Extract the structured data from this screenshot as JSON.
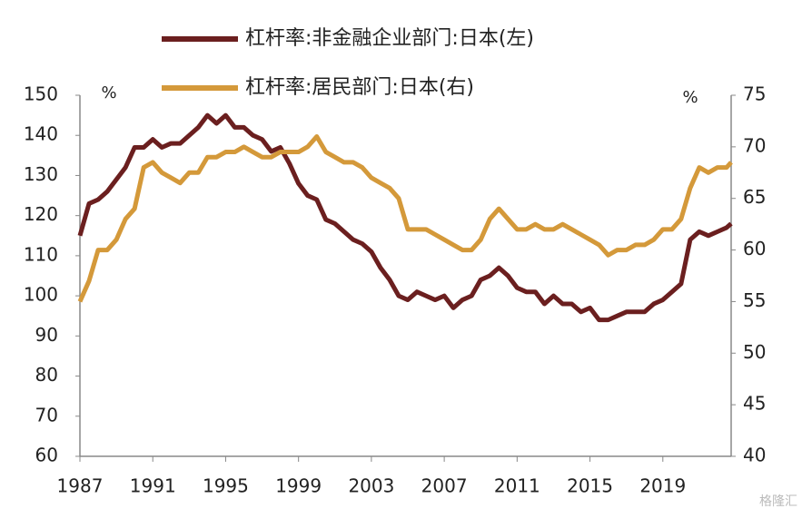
{
  "chart_data": {
    "type": "line",
    "x": [
      1987,
      1987.5,
      1988,
      1988.5,
      1989,
      1989.5,
      1990,
      1990.5,
      1991,
      1991.5,
      1992,
      1992.5,
      1993,
      1993.5,
      1994,
      1994.5,
      1995,
      1995.5,
      1996,
      1996.5,
      1997,
      1997.5,
      1998,
      1998.5,
      1999,
      1999.5,
      2000,
      2000.5,
      2001,
      2001.5,
      2002,
      2002.5,
      2003,
      2003.5,
      2004,
      2004.5,
      2005,
      2005.5,
      2006,
      2006.5,
      2007,
      2007.5,
      2008,
      2008.5,
      2009,
      2009.5,
      2010,
      2010.5,
      2011,
      2011.5,
      2012,
      2012.5,
      2013,
      2013.5,
      2014,
      2014.5,
      2015,
      2015.5,
      2016,
      2016.5,
      2017,
      2017.5,
      2018,
      2018.5,
      2019,
      2019.5,
      2020,
      2020.5,
      2021,
      2021.5,
      2022,
      2022.5,
      2022.75
    ],
    "series": [
      {
        "name": "杠杆率:非金融企业部门:日本(左)",
        "color": "#6b1f1f",
        "axis": "y",
        "values": [
          115,
          123,
          124,
          126,
          129,
          132,
          137,
          137,
          139,
          137,
          138,
          138,
          140,
          142,
          145,
          143,
          145,
          142,
          142,
          140,
          139,
          136,
          137,
          133,
          128,
          125,
          124,
          119,
          118,
          116,
          114,
          113,
          111,
          107,
          104,
          100,
          99,
          101,
          100,
          99,
          100,
          97,
          99,
          100,
          104,
          105,
          107,
          105,
          102,
          101,
          101,
          98,
          100,
          98,
          98,
          96,
          97,
          94,
          94,
          95,
          96,
          96,
          96,
          98,
          99,
          101,
          103,
          114,
          116,
          115,
          116,
          117,
          118
        ]
      },
      {
        "name": "杠杆率:居民部门:日本(右)",
        "color": "#d4993a",
        "axis": "y2",
        "values": [
          55,
          57,
          60,
          60,
          61,
          63,
          64,
          68,
          68.5,
          67.5,
          67,
          66.5,
          67.5,
          67.5,
          69,
          69,
          69.5,
          69.5,
          70,
          69.5,
          69,
          69,
          69.5,
          69.5,
          69.5,
          70,
          71,
          69.5,
          69,
          68.5,
          68.5,
          68,
          67,
          66.5,
          66,
          65,
          62,
          62,
          62,
          61.5,
          61,
          60.5,
          60,
          60,
          61,
          63,
          64,
          63,
          62,
          62,
          62.5,
          62,
          62,
          62.5,
          62,
          61.5,
          61,
          60.5,
          59.5,
          60,
          60,
          60.5,
          60.5,
          61,
          62,
          62,
          63,
          66,
          68,
          67.5,
          68,
          68,
          68.5
        ]
      }
    ],
    "xlim": [
      1987,
      2022.75
    ],
    "xticks": [
      1987,
      1991,
      1995,
      1999,
      2003,
      2007,
      2011,
      2015,
      2019
    ],
    "ylim": [
      60,
      150
    ],
    "yticks": [
      60,
      70,
      80,
      90,
      100,
      110,
      120,
      130,
      140,
      150
    ],
    "y2lim": [
      40,
      75
    ],
    "y2ticks": [
      40,
      45,
      50,
      55,
      60,
      65,
      70,
      75
    ],
    "y_unit": "%",
    "y2_unit": "%",
    "watermark": "格隆汇"
  }
}
